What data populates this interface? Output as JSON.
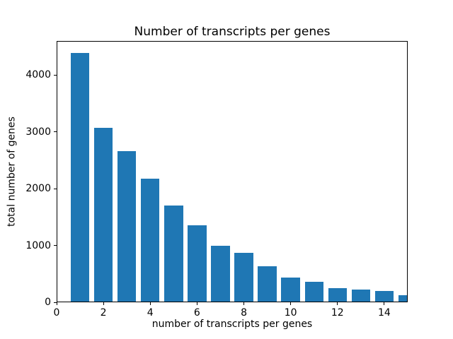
{
  "chart_data": {
    "type": "bar",
    "title": "Number of transcripts per genes",
    "xlabel": "number of transcripts per genes",
    "ylabel": "total number of genes",
    "x": [
      1,
      2,
      3,
      4,
      5,
      6,
      7,
      8,
      9,
      10,
      11,
      12,
      13,
      14,
      15
    ],
    "values": [
      4390,
      3070,
      2660,
      2170,
      1700,
      1350,
      1000,
      865,
      630,
      440,
      365,
      245,
      225,
      195,
      130
    ],
    "bar_color": "#1f77b4",
    "bar_width": 0.8,
    "xlim": [
      0,
      15
    ],
    "ylim": [
      0,
      4600
    ],
    "xticks": [
      0,
      2,
      4,
      6,
      8,
      10,
      12,
      14
    ],
    "yticks": [
      0,
      1000,
      2000,
      3000,
      4000
    ],
    "grid": false,
    "legend": null,
    "background": "#ffffff",
    "spine_color": "#000000"
  }
}
